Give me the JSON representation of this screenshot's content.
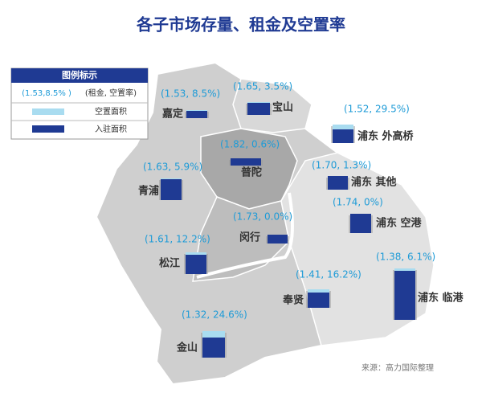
{
  "title": "各子市场存量、租金及空置率",
  "legend": {
    "title": "图例标示",
    "rows": [
      {
        "sample": "(1.53,8.5% )",
        "label": "(租金, 空置率)"
      },
      {
        "label": "空置面积"
      },
      {
        "label": "入驻面积"
      }
    ]
  },
  "regions": [
    {
      "name": "嘉定",
      "label": "(1.53, 8.5%)"
    },
    {
      "name": "宝山",
      "label": "(1.65, 3.5%)"
    },
    {
      "name": "浦东 外高桥",
      "label": "(1.52, 29.5%)"
    },
    {
      "name": "普陀",
      "label": "(1.82, 0.6%)"
    },
    {
      "name": "浦东 其他",
      "label": "(1.70, 1.3%)"
    },
    {
      "name": "青浦",
      "label": "(1.63, 5.9%)"
    },
    {
      "name": "浦东 空港",
      "label": "(1.74, 0%)"
    },
    {
      "name": "闵行",
      "label": "(1.73, 0.0%)"
    },
    {
      "name": "松江",
      "label": "(1.61, 12.2%)"
    },
    {
      "name": "浦东 临港",
      "label": "(1.38, 6.1%)"
    },
    {
      "name": "奉贤",
      "label": "(1.41, 16.2%)"
    },
    {
      "name": "金山",
      "label": "(1.32, 24.6%)"
    }
  ],
  "source": "来源：高力国际整理"
}
